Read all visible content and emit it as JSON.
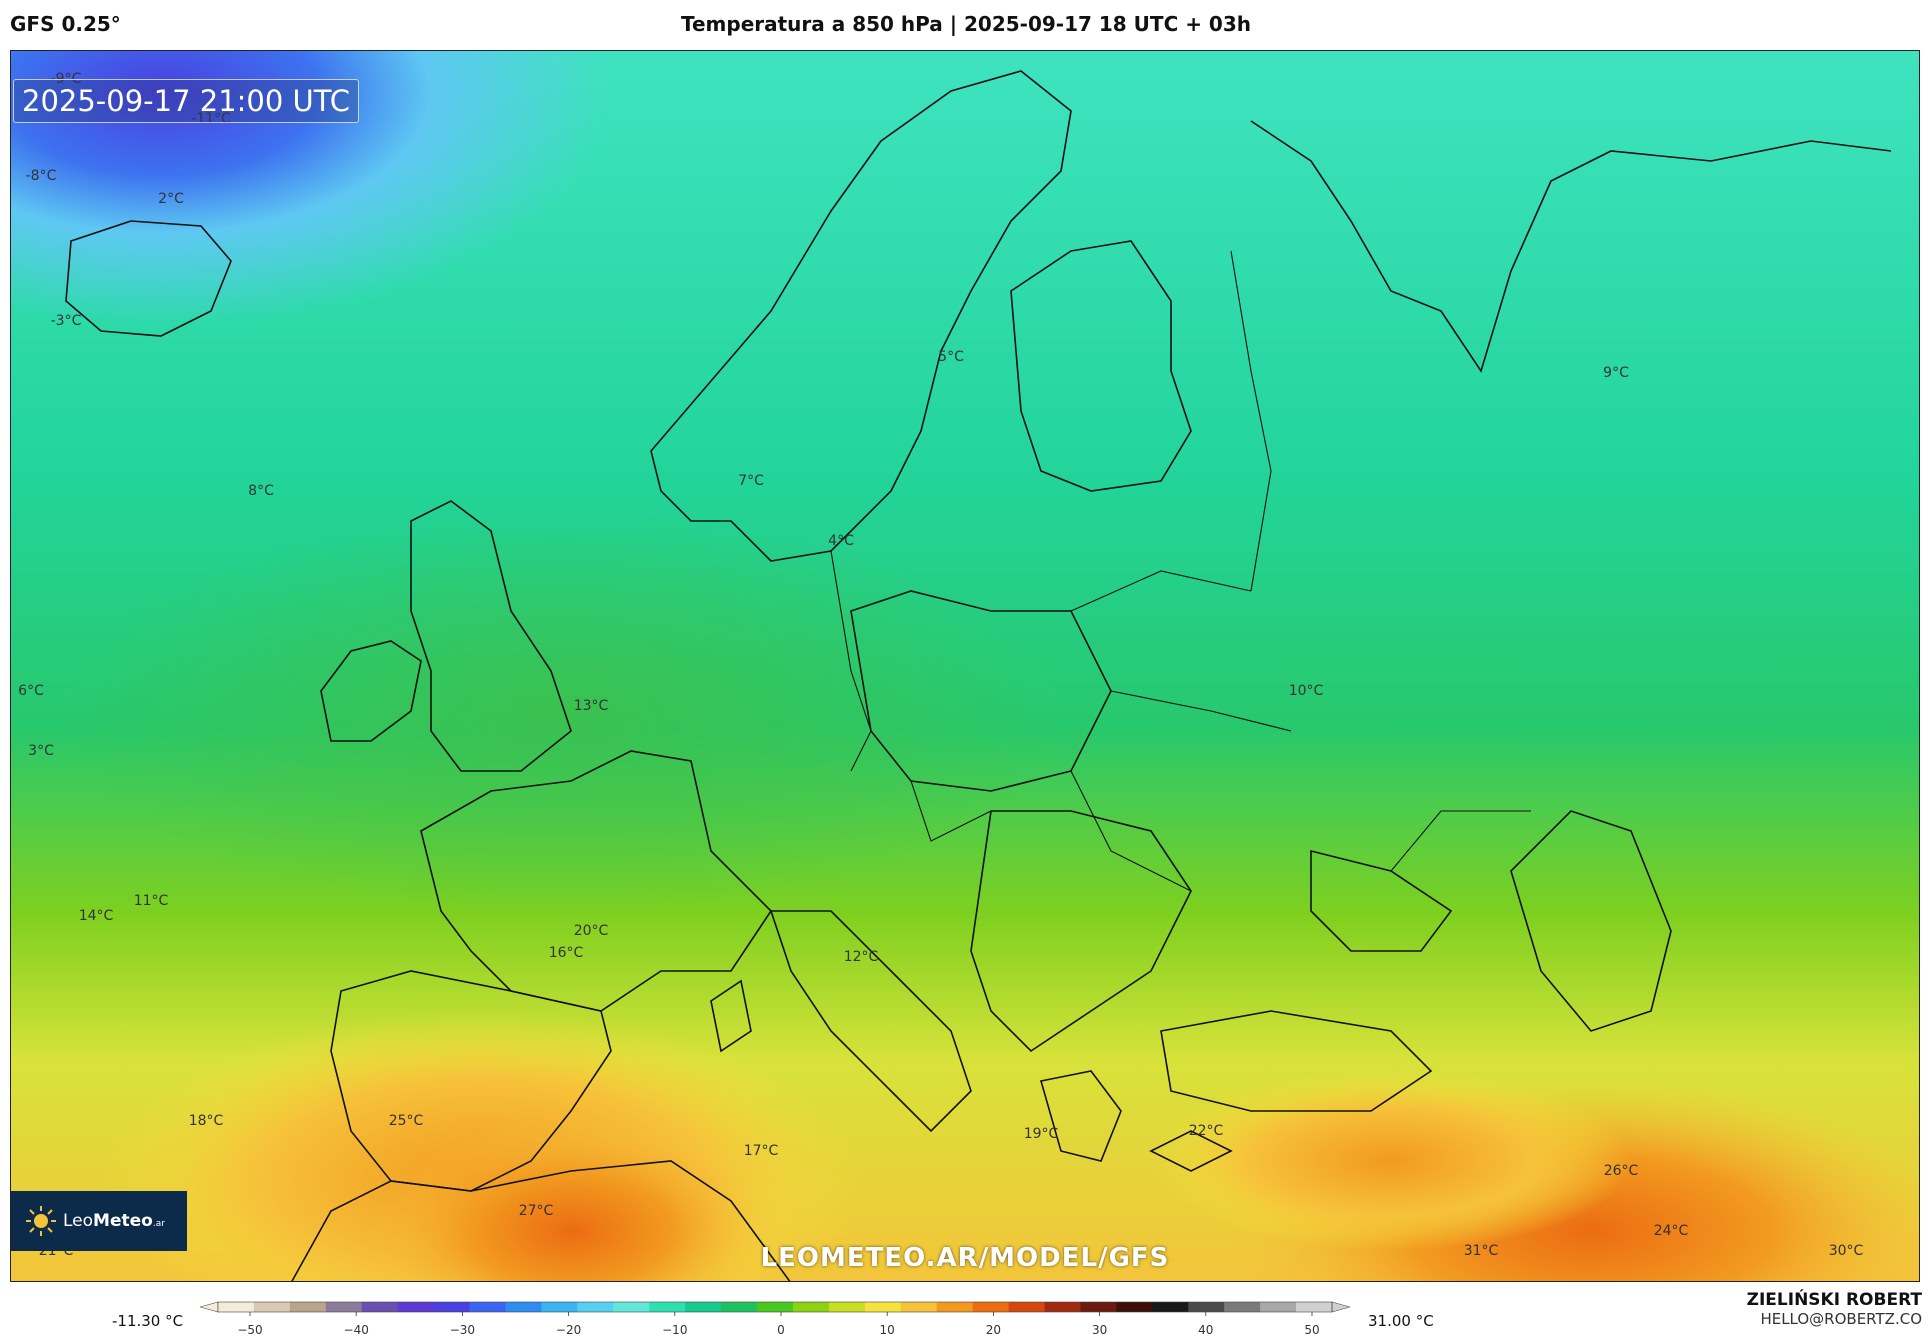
{
  "header": {
    "model": "GFS 0.25°",
    "title": "Temperatura a 850 hPa | 2025-09-17 18 UTC + 03h"
  },
  "map": {
    "timestamp": "2025-09-17 21:00 UTC",
    "watermark": "LEOMETEO.AR/MODEL/GFS",
    "logo_text_light": "Leo",
    "logo_text_bold": "Meteo",
    "logo_suffix": ".ar",
    "temperature_labels": [
      "-9°C",
      "-11°C",
      "-8°C",
      "-3°C",
      "2°C",
      "6°C",
      "3°C",
      "7°C",
      "5°C",
      "4°C",
      "9°C",
      "8°C",
      "13°C",
      "11°C",
      "14°C",
      "20°C",
      "16°C",
      "12°C",
      "18°C",
      "25°C",
      "27°C",
      "17°C",
      "19°C",
      "22°C",
      "26°C",
      "24°C",
      "31°C",
      "30°C",
      "21°C",
      "10°C"
    ]
  },
  "colorbar": {
    "min_label": "-11.30 °C",
    "max_label": "31.00 °C",
    "ticks": [
      "−50",
      "−40",
      "−30",
      "−20",
      "−10",
      "0",
      "10",
      "20",
      "30",
      "40",
      "50"
    ],
    "colors": [
      "#f4ecd8",
      "#d8c9b0",
      "#b7a68c",
      "#8b7d9a",
      "#6a4fb0",
      "#5a3ad0",
      "#4a40e0",
      "#3d64f0",
      "#2f8cf0",
      "#3ab4f2",
      "#56d0f0",
      "#62e8d8",
      "#2ee0b0",
      "#18c88c",
      "#1fc060",
      "#48c81e",
      "#8cd214",
      "#c8de20",
      "#f4e23e",
      "#f6c23a",
      "#f29a20",
      "#ec6c12",
      "#d44810",
      "#a02a10",
      "#6c1a10",
      "#3a1008",
      "#181818",
      "#4a4a4a",
      "#7a7a7a",
      "#a8a8a8",
      "#d0d0d0"
    ]
  },
  "author": {
    "name": "ZIELIŃSKI ROBERT",
    "email": "HELLO@ROBERTZ.CO"
  }
}
